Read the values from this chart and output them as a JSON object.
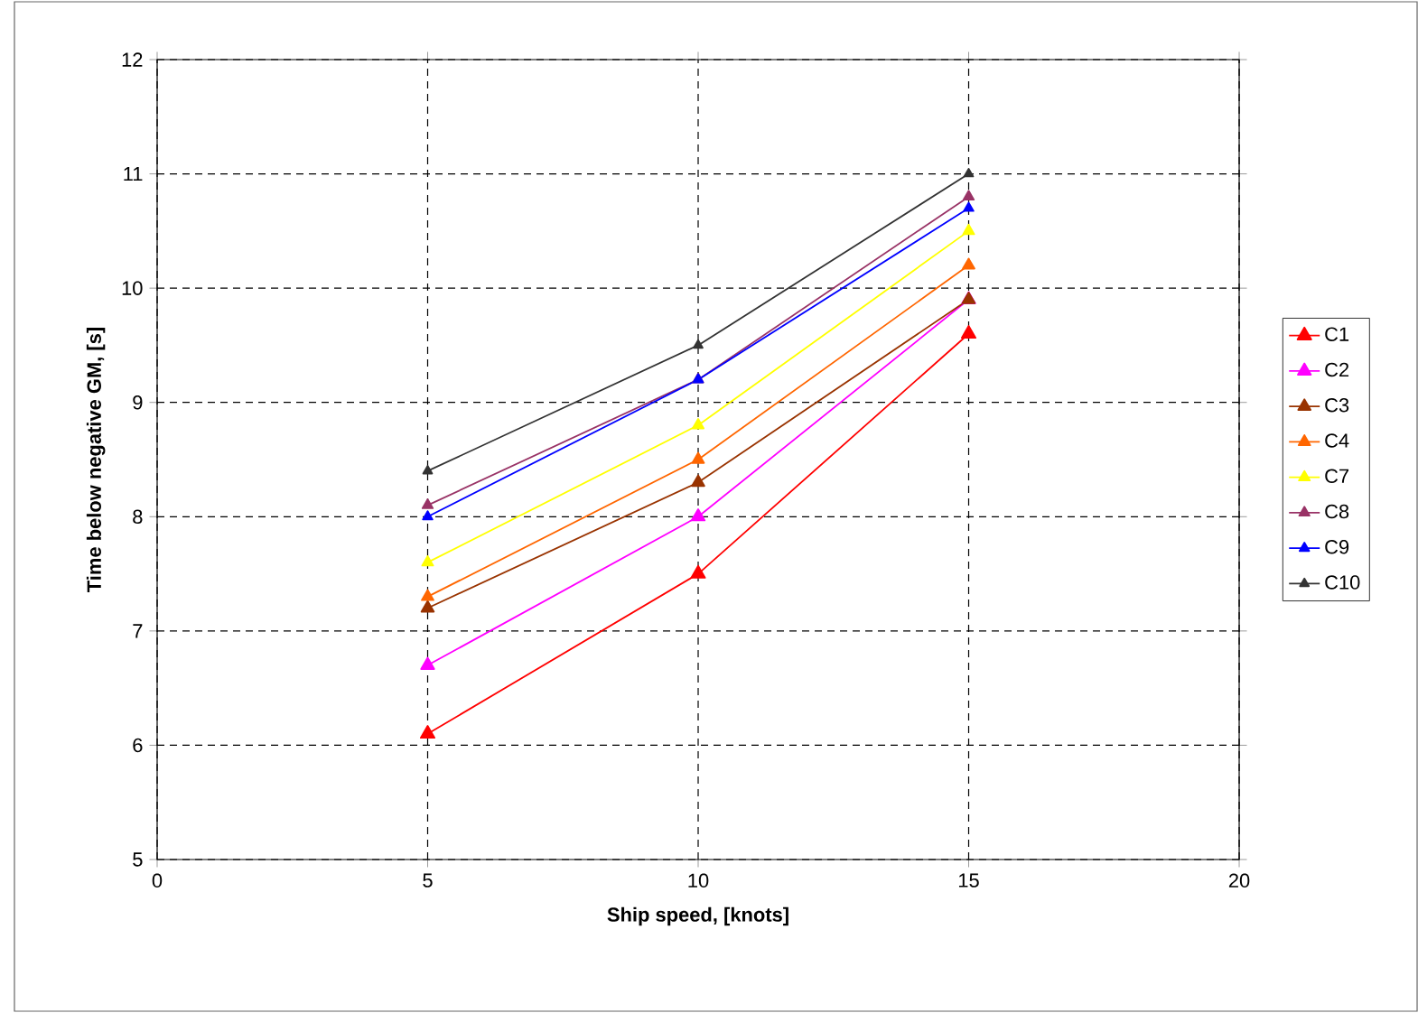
{
  "chart_data": {
    "type": "line",
    "xlabel": "Ship speed, [knots]",
    "ylabel": "Time below negative GM, [s]",
    "x": [
      5,
      10,
      15
    ],
    "series": [
      {
        "name": "C1",
        "color": "#ff0000",
        "values": [
          6.1,
          7.5,
          9.6
        ]
      },
      {
        "name": "C2",
        "color": "#ff00ff",
        "values": [
          6.7,
          8.0,
          9.9
        ]
      },
      {
        "name": "C3",
        "color": "#993300",
        "values": [
          7.2,
          8.3,
          9.9
        ]
      },
      {
        "name": "C4",
        "color": "#ff6600",
        "values": [
          7.3,
          8.5,
          10.2
        ]
      },
      {
        "name": "C7",
        "color": "#ffff00",
        "values": [
          7.6,
          8.8,
          10.5
        ]
      },
      {
        "name": "C8",
        "color": "#993366",
        "values": [
          8.1,
          9.2,
          10.8
        ]
      },
      {
        "name": "C9",
        "color": "#0000ff",
        "values": [
          8.0,
          9.2,
          10.7
        ]
      },
      {
        "name": "C10",
        "color": "#333333",
        "values": [
          8.4,
          9.5,
          11.0
        ]
      }
    ],
    "xlim": [
      0,
      20
    ],
    "xticks": [
      0,
      5,
      10,
      15,
      20
    ],
    "ylim": [
      5,
      12
    ],
    "yticks": [
      5,
      6,
      7,
      8,
      9,
      10,
      11,
      12
    ],
    "grid": true,
    "legend": "right",
    "marker": "triangle",
    "line_style": "solid"
  }
}
